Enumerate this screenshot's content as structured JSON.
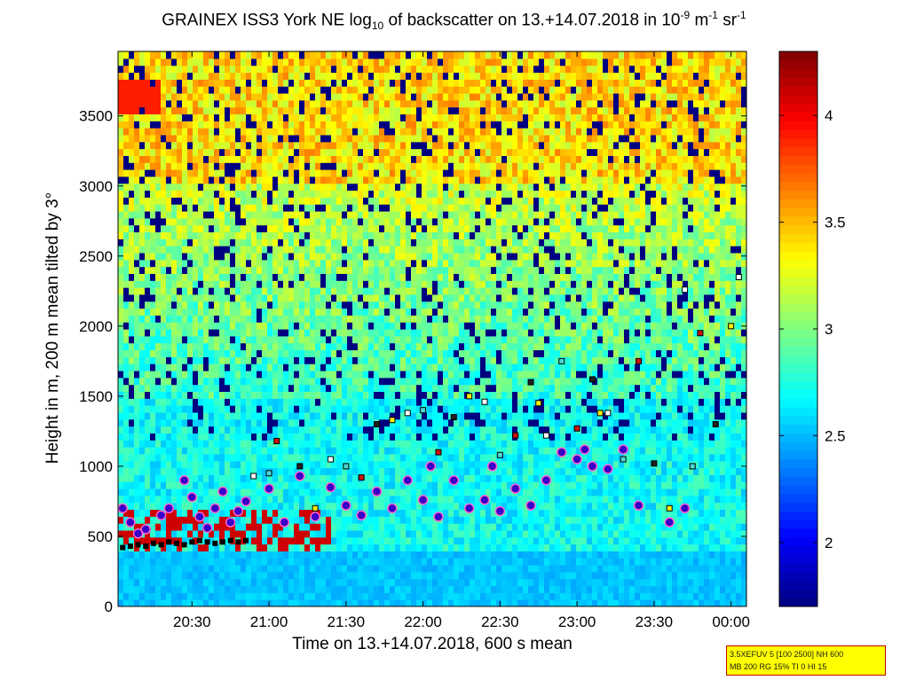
{
  "chart_data": {
    "type": "heatmap",
    "title_parts": {
      "a": "GRAINEX ISS3 York NE log",
      "sub": "10",
      "b": " of backscatter on 13.+14.07.2018 in 10",
      "sup1": "-9",
      "c": " m",
      "sup2": "-1",
      "d": " sr",
      "sup3": "-1"
    },
    "xlabel": "Time on 13.+14.07.2018, 600 s mean",
    "ylabel": "Height in m, 200 m mean tilted by 3°",
    "x_ticks": [
      "20:30",
      "21:00",
      "21:30",
      "22:00",
      "22:30",
      "23:00",
      "23:30",
      "00:00"
    ],
    "x_tick_hours": [
      20.5,
      21.0,
      21.5,
      22.0,
      22.5,
      23.0,
      23.5,
      24.0
    ],
    "xlim_hours": [
      20.02,
      24.1
    ],
    "y_ticks": [
      0,
      500,
      1000,
      1500,
      2000,
      2500,
      3000,
      3500
    ],
    "ylim": [
      0,
      3960
    ],
    "colorbar": {
      "ticks": [
        2,
        2.5,
        3,
        3.5,
        4
      ],
      "clim": [
        1.7,
        4.3
      ],
      "colormap": "jet"
    },
    "field_structure": {
      "near_surface_value": 2.5,
      "mid_level_value": 2.7,
      "upper_level_value": 3.4,
      "aerosol_layer_top_m": 700,
      "aerosol_layer_value": 4.1,
      "clear_gaps_value": 1.7
    },
    "cloud_base_markers": {
      "hours": [
        20.05,
        20.1,
        20.15,
        20.2,
        20.25,
        20.3,
        20.35,
        20.4,
        20.45,
        20.5,
        20.55,
        20.6,
        20.65,
        20.7,
        20.75,
        20.8,
        20.85
      ],
      "heights_m": [
        420,
        430,
        440,
        430,
        450,
        440,
        460,
        450,
        440,
        460,
        470,
        460,
        450,
        460,
        470,
        460,
        470
      ]
    },
    "layer_points_circles": {
      "hours": [
        20.05,
        20.1,
        20.15,
        20.2,
        20.3,
        20.35,
        20.45,
        20.5,
        20.55,
        20.6,
        20.65,
        20.7,
        20.75,
        20.8,
        20.85,
        21.0,
        21.1,
        21.2,
        21.3,
        21.4,
        21.5,
        21.6,
        21.7,
        21.8,
        21.9,
        22.0,
        22.05,
        22.1,
        22.2,
        22.3,
        22.4,
        22.45,
        22.5,
        22.6,
        22.7,
        22.8,
        22.9,
        23.0,
        23.05,
        23.1,
        23.2,
        23.3,
        23.4,
        23.6,
        23.7
      ],
      "heights_m": [
        700,
        600,
        520,
        550,
        650,
        700,
        900,
        780,
        640,
        560,
        700,
        820,
        600,
        680,
        750,
        840,
        600,
        930,
        640,
        850,
        720,
        650,
        820,
        700,
        900,
        760,
        1000,
        640,
        900,
        700,
        760,
        1000,
        680,
        840,
        720,
        900,
        1100,
        1050,
        1120,
        1000,
        980,
        1120,
        720,
        600,
        700
      ]
    },
    "layer_points_squares": {
      "hours": [
        20.9,
        21.0,
        21.05,
        21.2,
        21.3,
        21.4,
        21.5,
        21.6,
        21.7,
        21.8,
        21.9,
        22.0,
        22.1,
        22.2,
        22.3,
        22.4,
        22.5,
        22.6,
        22.7,
        22.75,
        22.8,
        22.9,
        23.0,
        23.1,
        23.15,
        23.2,
        23.3,
        23.4,
        23.5,
        23.6,
        23.7,
        23.75,
        23.8,
        23.9,
        24.0,
        24.05
      ],
      "heights_m": [
        930,
        950,
        1180,
        1000,
        700,
        1050,
        1000,
        920,
        1300,
        1330,
        1380,
        1400,
        1100,
        1350,
        1500,
        1460,
        1080,
        1220,
        1600,
        1450,
        1220,
        1750,
        1270,
        1620,
        1380,
        1380,
        1050,
        1750,
        1020,
        700,
        2260,
        1000,
        1950,
        1300,
        2000,
        2350
      ]
    }
  },
  "info_box": {
    "line1": "3.5XEFUV 5 [100 2500] NH 600",
    "line2": "MB 200 RG 15% TI 0 HI 15"
  }
}
